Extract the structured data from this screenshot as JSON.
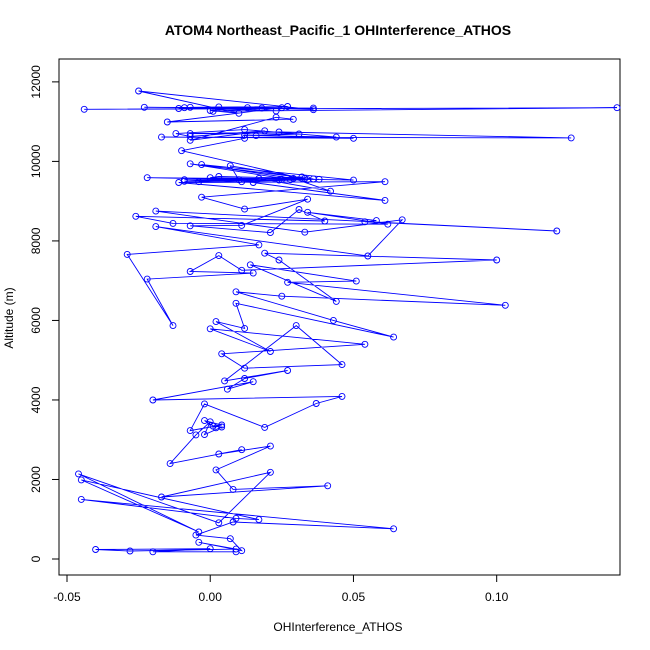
{
  "chart_data": {
    "type": "line",
    "title": "ATOM4 Northeast_Pacific_1 OHInterference_ATHOS",
    "xlabel": "OHInterference_ATHOS",
    "ylabel": "Altitude (m)",
    "xlim": [
      -0.05,
      0.142
    ],
    "ylim": [
      0,
      12500
    ],
    "xticks": [
      -0.05,
      0.0,
      0.05,
      0.1
    ],
    "xtick_labels": [
      "-0.05",
      "0.00",
      "0.05",
      "0.10"
    ],
    "yticks": [
      0,
      2000,
      4000,
      6000,
      8000,
      10000,
      12000
    ],
    "ytick_labels": [
      "0",
      "2000",
      "4000",
      "6000",
      "8000",
      "10000",
      "12000"
    ],
    "grid": false,
    "series": [
      {
        "color": "#0000ff",
        "marker": "open-circle",
        "points": [
          [
            0.009,
            180
          ],
          [
            -0.02,
            180
          ],
          [
            0.0,
            260
          ],
          [
            -0.04,
            240
          ],
          [
            -0.028,
            200
          ],
          [
            0.009,
            250
          ],
          [
            -0.004,
            420
          ],
          [
            0.011,
            210
          ],
          [
            0.007,
            510
          ],
          [
            -0.005,
            600
          ],
          [
            0.008,
            930
          ],
          [
            0.064,
            760
          ],
          [
            -0.045,
            1500
          ],
          [
            0.009,
            1020
          ],
          [
            0.017,
            990
          ],
          [
            -0.045,
            1990
          ],
          [
            -0.004,
            680
          ],
          [
            -0.046,
            2140
          ],
          [
            0.003,
            910
          ],
          [
            0.021,
            2180
          ],
          [
            -0.017,
            1560
          ],
          [
            0.041,
            1840
          ],
          [
            0.008,
            1750
          ],
          [
            0.002,
            2240
          ],
          [
            0.021,
            2840
          ],
          [
            0.003,
            2640
          ],
          [
            0.011,
            2750
          ],
          [
            -0.014,
            2400
          ],
          [
            -0.005,
            3120
          ],
          [
            0.0,
            3450
          ],
          [
            -0.002,
            3130
          ],
          [
            0.004,
            3320
          ],
          [
            0.001,
            3340
          ],
          [
            0.002,
            3300
          ],
          [
            -0.002,
            3480
          ],
          [
            0.004,
            3370
          ],
          [
            -0.007,
            3230
          ],
          [
            -0.002,
            3900
          ],
          [
            0.019,
            3310
          ],
          [
            0.037,
            3910
          ],
          [
            0.046,
            4090
          ],
          [
            -0.02,
            4000
          ],
          [
            0.015,
            4460
          ],
          [
            0.006,
            4270
          ],
          [
            0.012,
            4540
          ],
          [
            0.027,
            4740
          ],
          [
            0.005,
            4480
          ],
          [
            0.03,
            5870
          ],
          [
            0.046,
            4890
          ],
          [
            0.012,
            4800
          ],
          [
            0.004,
            5160
          ],
          [
            0.054,
            5400
          ],
          [
            0.0,
            5790
          ],
          [
            0.021,
            5220
          ],
          [
            0.002,
            5970
          ],
          [
            0.012,
            5800
          ],
          [
            0.009,
            6430
          ],
          [
            0.064,
            5580
          ],
          [
            0.043,
            6000
          ],
          [
            0.009,
            6720
          ],
          [
            0.025,
            6610
          ],
          [
            0.103,
            6380
          ],
          [
            0.027,
            6960
          ],
          [
            0.051,
            6990
          ],
          [
            0.014,
            7400
          ],
          [
            0.044,
            6480
          ],
          [
            0.024,
            7520
          ],
          [
            0.019,
            7690
          ],
          [
            0.1,
            7520
          ],
          [
            0.011,
            7260
          ],
          [
            0.003,
            7630
          ],
          [
            -0.007,
            7230
          ],
          [
            0.015,
            7190
          ],
          [
            -0.022,
            7040
          ],
          [
            -0.013,
            5870
          ],
          [
            -0.029,
            7660
          ],
          [
            0.017,
            7900
          ],
          [
            -0.019,
            8360
          ],
          [
            0.055,
            7620
          ],
          [
            0.067,
            8530
          ],
          [
            0.033,
            8220
          ],
          [
            -0.019,
            8750
          ],
          [
            0.121,
            8250
          ],
          [
            0.054,
            8480
          ],
          [
            0.058,
            8510
          ],
          [
            0.034,
            8720
          ],
          [
            0.062,
            8420
          ],
          [
            -0.013,
            8440
          ],
          [
            -0.026,
            8620
          ],
          [
            0.04,
            8500
          ],
          [
            0.031,
            8790
          ],
          [
            0.021,
            8210
          ],
          [
            -0.007,
            8380
          ],
          [
            0.011,
            8390
          ],
          [
            0.034,
            9050
          ],
          [
            0.012,
            8800
          ],
          [
            -0.003,
            9100
          ],
          [
            0.061,
            9490
          ],
          [
            -0.011,
            9470
          ],
          [
            0.061,
            9020
          ],
          [
            0.015,
            9470
          ],
          [
            -0.009,
            9540
          ],
          [
            0.024,
            9530
          ],
          [
            -0.022,
            9590
          ],
          [
            0.038,
            9550
          ],
          [
            -0.009,
            9500
          ],
          [
            0.017,
            9570
          ],
          [
            0.042,
            9250
          ],
          [
            0.029,
            9570
          ],
          [
            -0.003,
            9920
          ],
          [
            0.05,
            9530
          ],
          [
            0.0,
            9590
          ],
          [
            0.003,
            9620
          ],
          [
            0.033,
            9570
          ],
          [
            0.007,
            9890
          ],
          [
            0.01,
            9540
          ],
          [
            0.032,
            9610
          ],
          [
            0.028,
            9540
          ],
          [
            -0.007,
            9940
          ],
          [
            0.036,
            9560
          ],
          [
            -0.004,
            9490
          ],
          [
            0.025,
            9550
          ],
          [
            0.011,
            9490
          ],
          [
            0.034,
            9540
          ],
          [
            -0.01,
            10270
          ],
          [
            0.012,
            10580
          ],
          [
            0.012,
            10660
          ],
          [
            0.05,
            10580
          ],
          [
            -0.017,
            10610
          ],
          [
            0.126,
            10590
          ],
          [
            0.024,
            10740
          ],
          [
            -0.007,
            10700
          ],
          [
            0.031,
            10690
          ],
          [
            0.016,
            10650
          ],
          [
            0.044,
            10610
          ],
          [
            0.012,
            10800
          ],
          [
            -0.012,
            10700
          ],
          [
            -0.007,
            10630
          ],
          [
            0.019,
            10770
          ],
          [
            -0.007,
            10530
          ],
          [
            0.023,
            11110
          ],
          [
            0.029,
            11060
          ],
          [
            -0.015,
            10990
          ],
          [
            0.025,
            11350
          ],
          [
            0.001,
            11260
          ],
          [
            0.142,
            11350
          ],
          [
            -0.044,
            11310
          ],
          [
            0.036,
            11340
          ],
          [
            -0.007,
            11360
          ],
          [
            0.027,
            11380
          ],
          [
            -0.011,
            11330
          ],
          [
            0.018,
            11340
          ],
          [
            -0.023,
            11360
          ],
          [
            0.013,
            11350
          ],
          [
            0.0,
            11280
          ],
          [
            0.01,
            11210
          ],
          [
            -0.025,
            11770
          ],
          [
            0.036,
            11300
          ],
          [
            0.003,
            11370
          ],
          [
            -0.009,
            11350
          ],
          [
            0.023,
            11270
          ]
        ]
      }
    ]
  }
}
